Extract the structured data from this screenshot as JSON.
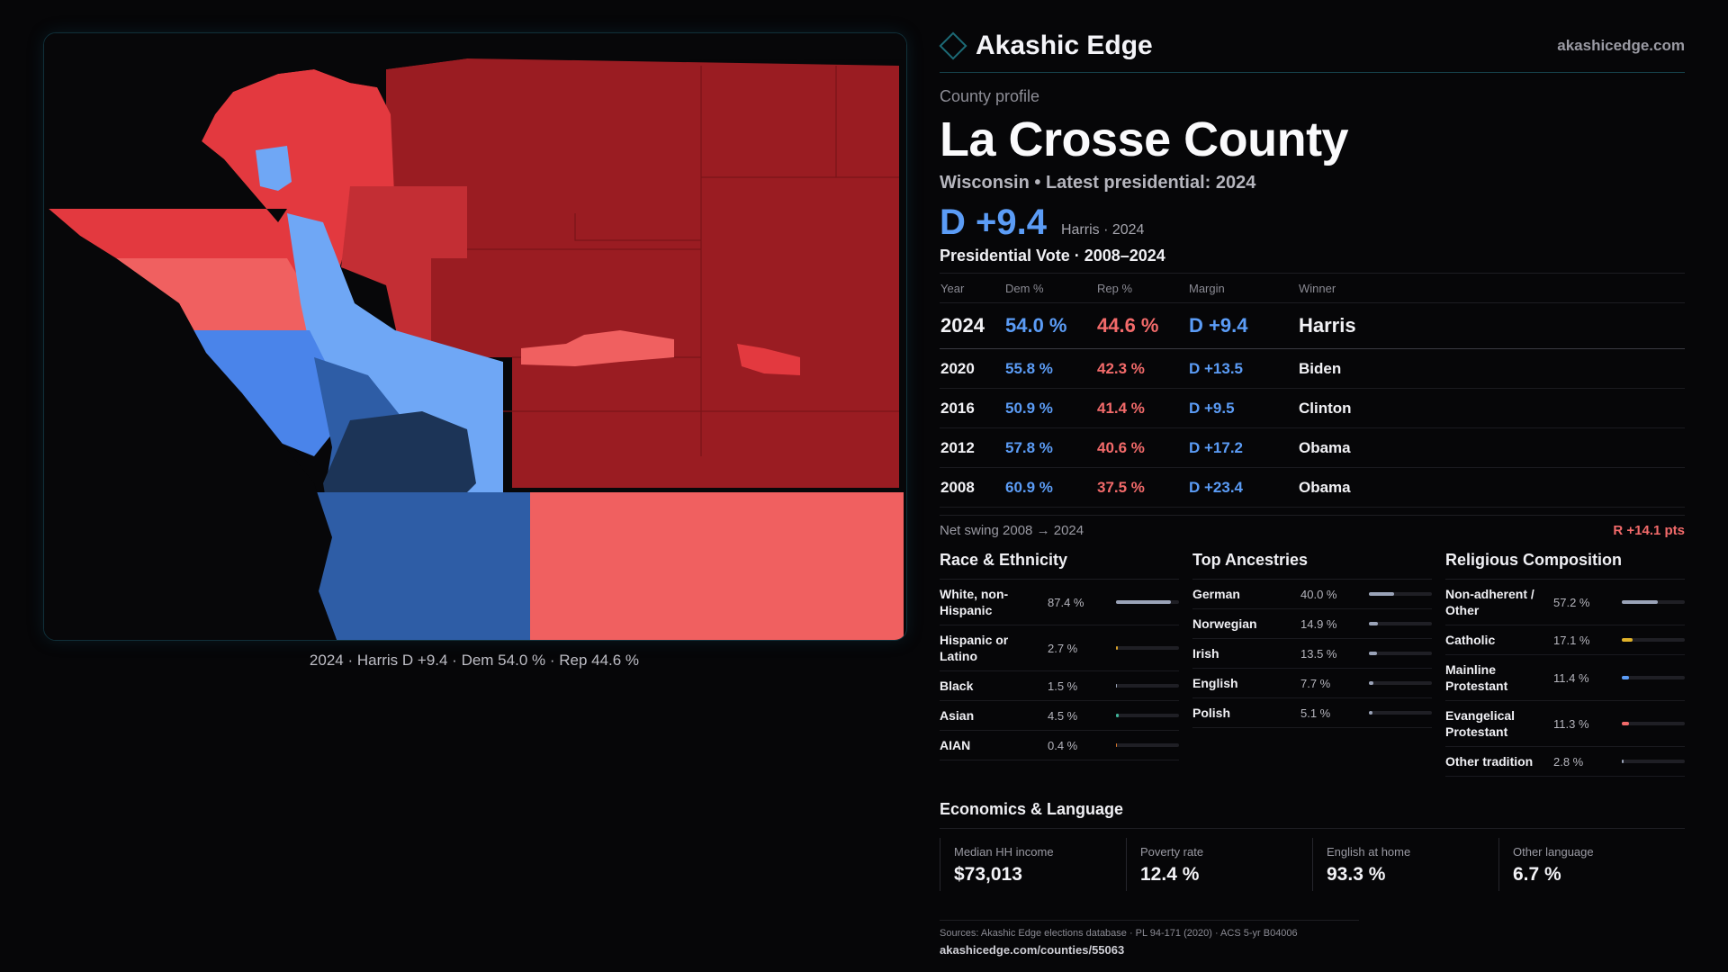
{
  "colors": {
    "dem_strong": "#1c3457",
    "dem_mid": "#2e5da6",
    "dem_light": "#4a84ea",
    "dem_pale": "#6fa7f5",
    "rep_strong": "#9a1c22",
    "rep_mid": "#c32e34",
    "rep_light": "#e3393f",
    "rep_pale": "#f06060"
  },
  "brand": {
    "name": "Akashic Edge",
    "url": "akashicedge.com"
  },
  "map": {
    "caption": "2024 · Harris D +9.4 · Dem 54.0 % · Rep 44.6 %"
  },
  "profile": {
    "eyebrow": "County profile",
    "county": "La Crosse County",
    "subtitle": "Wisconsin • Latest presidential: 2024",
    "margin": "D +9.4",
    "winner_line": "Harris · 2024"
  },
  "votes": {
    "title": "Presidential Vote · 2008–2024",
    "headers": [
      "Year",
      "Dem %",
      "Rep %",
      "Margin",
      "Winner"
    ],
    "rows": [
      {
        "year": "2024",
        "dem": "54.0 %",
        "rep": "44.6 %",
        "margin": "D +9.4",
        "winner": "Harris"
      },
      {
        "year": "2020",
        "dem": "55.8 %",
        "rep": "42.3 %",
        "margin": "D +13.5",
        "winner": "Biden"
      },
      {
        "year": "2016",
        "dem": "50.9 %",
        "rep": "41.4 %",
        "margin": "D +9.5",
        "winner": "Clinton"
      },
      {
        "year": "2012",
        "dem": "57.8 %",
        "rep": "40.6 %",
        "margin": "D +17.2",
        "winner": "Obama"
      },
      {
        "year": "2008",
        "dem": "60.9 %",
        "rep": "37.5 %",
        "margin": "D +23.4",
        "winner": "Obama"
      }
    ],
    "swing_label": "Net swing 2008 → 2024",
    "swing_value": "R +14.1 pts"
  },
  "race": {
    "title": "Race & Ethnicity",
    "items": [
      {
        "label": "White, non-Hispanic",
        "pct": "87.4 %",
        "value": 87.4,
        "color": "#9aa3b8"
      },
      {
        "label": "Hispanic or Latino",
        "pct": "2.7 %",
        "value": 2.7,
        "color": "#d8a22a"
      },
      {
        "label": "Black",
        "pct": "1.5 %",
        "value": 1.5,
        "color": "#9aa3b8"
      },
      {
        "label": "Asian",
        "pct": "4.5 %",
        "value": 4.5,
        "color": "#3fb59a"
      },
      {
        "label": "AIAN",
        "pct": "0.4 %",
        "value": 0.4,
        "color": "#d8762a"
      }
    ]
  },
  "ancestry": {
    "title": "Top Ancestries",
    "items": [
      {
        "label": "German",
        "pct": "40.0 %",
        "value": 40.0,
        "color": "#9aa3b8"
      },
      {
        "label": "Norwegian",
        "pct": "14.9 %",
        "value": 14.9,
        "color": "#9aa3b8"
      },
      {
        "label": "Irish",
        "pct": "13.5 %",
        "value": 13.5,
        "color": "#9aa3b8"
      },
      {
        "label": "English",
        "pct": "7.7 %",
        "value": 7.7,
        "color": "#9aa3b8"
      },
      {
        "label": "Polish",
        "pct": "5.1 %",
        "value": 5.1,
        "color": "#9aa3b8"
      }
    ]
  },
  "religion": {
    "title": "Religious Composition",
    "items": [
      {
        "label": "Non-adherent / Other",
        "pct": "57.2 %",
        "value": 57.2,
        "color": "#9aa3b8"
      },
      {
        "label": "Catholic",
        "pct": "17.1 %",
        "value": 17.1,
        "color": "#e0b22a"
      },
      {
        "label": "Mainline Protestant",
        "pct": "11.4 %",
        "value": 11.4,
        "color": "#5b9cf6"
      },
      {
        "label": "Evangelical Protestant",
        "pct": "11.3 %",
        "value": 11.3,
        "color": "#f26a6a"
      },
      {
        "label": "Other tradition",
        "pct": "2.8 %",
        "value": 2.8,
        "color": "#9aa3b8"
      }
    ]
  },
  "economics": {
    "title": "Economics & Language",
    "stats": [
      {
        "label": "Median HH income",
        "value": "$73,013"
      },
      {
        "label": "Poverty rate",
        "value": "12.4 %"
      },
      {
        "label": "English at home",
        "value": "93.3 %"
      },
      {
        "label": "Other language",
        "value": "6.7 %"
      }
    ]
  },
  "footer": {
    "sources": "Sources: Akashic Edge elections database · PL 94-171 (2020) · ACS 5-yr B04006",
    "permalink": "akashicedge.com/counties/55063"
  }
}
